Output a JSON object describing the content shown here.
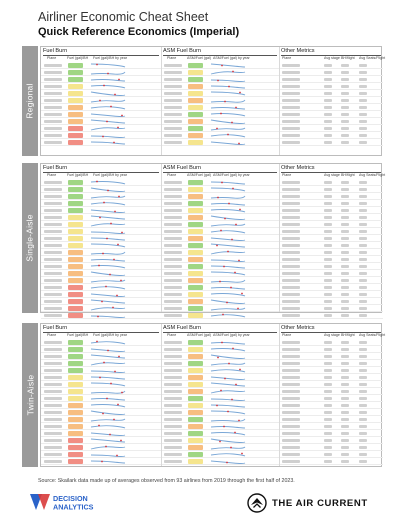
{
  "header": {
    "title": "Airliner Economic Cheat Sheet",
    "subtitle": "Quick Reference Economics (Imperial)"
  },
  "sections": [
    {
      "label": "Regional",
      "rows": 12,
      "panels": {
        "fuel": {
          "title": "Fuel Burn",
          "cols": [
            "Plane",
            "Fuel (gal)/BH",
            "Fuel (gal)/BH by year"
          ]
        },
        "asm": {
          "title": "ASM Fuel Burn",
          "cols": [
            "Plane",
            "ASM/Fuel (gal)",
            "ASM/Fuel (gal) by year"
          ]
        },
        "other": {
          "title": "Other Metrics",
          "cols": [
            "Plane",
            "Avg stage",
            "BH/flight",
            "Avg Seats/Flight"
          ],
          "total": "Total"
        }
      }
    },
    {
      "label": "Single-Aisle",
      "rows": 20,
      "panels": {
        "fuel": {
          "title": "Fuel Burn",
          "cols": [
            "Plane",
            "Fuel (gal)/BH",
            "Fuel (gal)/BH by year"
          ]
        },
        "asm": {
          "title": "ASM Fuel Burn",
          "cols": [
            "Plane",
            "ASM/Fuel (gal)",
            "ASM/Fuel (gal) by year"
          ]
        },
        "other": {
          "title": "Other Metrics",
          "cols": [
            "Plane",
            "Avg stage",
            "BH/flight",
            "Avg Seats/Flight"
          ],
          "total": "Total"
        }
      }
    },
    {
      "label": "Twin-Aisle",
      "rows": 18,
      "panels": {
        "fuel": {
          "title": "Fuel Burn",
          "cols": [
            "Plane",
            "Fuel (gal)/BH",
            "Fuel (gal)/BH by year"
          ]
        },
        "asm": {
          "title": "ASM Fuel Burn",
          "cols": [
            "Plane",
            "ASM/Fuel (gal)",
            "ASM/Fuel (gal) by year"
          ]
        },
        "other": {
          "title": "Other Metrics",
          "cols": [
            "Plane",
            "Avg stage",
            "BH/flight",
            "Avg Seats/Flight"
          ],
          "total": "Total"
        }
      }
    }
  ],
  "source": "Source: Skailark data made up of averages observed from 93 airlines from 2019 through the first half of 2023.",
  "logos": {
    "left": {
      "line1": "DECISION",
      "line2": "ANALYTICS"
    },
    "right": {
      "text": "THE AIR CURRENT"
    }
  },
  "colors": {
    "section_label_bg": "#9a9a9a",
    "heat_green": "#8fcf6e",
    "heat_yellow": "#f3e07a",
    "heat_orange": "#f6b36b",
    "heat_red": "#ee7a6e",
    "spark_line": "#7aa7d6",
    "spark_marker": "#d9363e",
    "logo_blue": "#2b63c9",
    "logo_red": "#d83a3a"
  }
}
